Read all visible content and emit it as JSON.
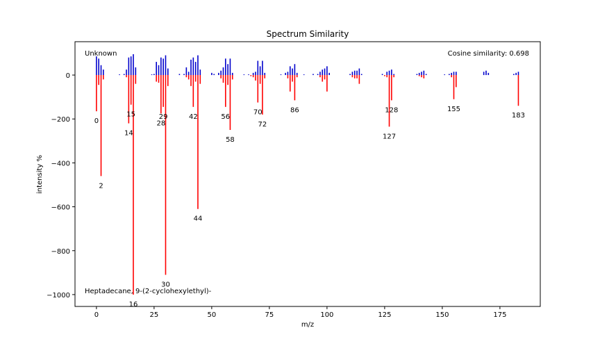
{
  "chart_data": {
    "type": "bar",
    "title": "Spectrum Similarity",
    "x_label": "m/z",
    "y_label": "intensity %",
    "annotations": [
      "Unknown",
      "Cosine similarity: 0.698",
      "Heptadecane, 9-(2-cyclohexylethyl)-"
    ],
    "xlim": [
      -9.3,
      192.5
    ],
    "ylim": [
      -1054,
      152
    ],
    "xticks": [
      0,
      25,
      50,
      75,
      100,
      125,
      150,
      175
    ],
    "yticks": [
      {
        "value": -1000,
        "label": "−1000"
      },
      {
        "value": -800,
        "label": "−800"
      },
      {
        "value": -600,
        "label": "−600"
      },
      {
        "value": -400,
        "label": "−400"
      },
      {
        "value": -200,
        "label": "−200"
      },
      0
    ],
    "series": [
      {
        "name": "Unknown",
        "color": "#0000cc",
        "x": [
          0,
          1,
          2,
          3,
          10,
          12,
          13,
          14,
          15,
          16,
          17,
          24,
          25,
          26,
          27,
          28,
          29,
          30,
          31,
          36,
          38,
          39,
          40,
          41,
          42,
          43,
          44,
          45,
          50,
          51,
          53,
          54,
          55,
          56,
          57,
          58,
          59,
          64,
          66,
          68,
          69,
          70,
          71,
          72,
          73,
          80,
          82,
          83,
          84,
          85,
          86,
          87,
          90,
          94,
          96,
          97,
          98,
          99,
          100,
          101,
          110,
          111,
          112,
          113,
          114,
          115,
          124,
          126,
          127,
          128,
          129,
          139,
          140,
          141,
          142,
          143,
          151,
          153,
          154,
          155,
          156,
          168,
          169,
          170,
          181,
          182,
          183
        ],
        "values": [
          85,
          75,
          45,
          25,
          3,
          5,
          25,
          80,
          85,
          95,
          35,
          3,
          5,
          60,
          45,
          80,
          75,
          90,
          30,
          5,
          5,
          35,
          15,
          70,
          80,
          60,
          90,
          25,
          10,
          5,
          10,
          20,
          35,
          75,
          50,
          75,
          10,
          3,
          3,
          10,
          15,
          65,
          40,
          65,
          10,
          3,
          10,
          15,
          40,
          30,
          50,
          10,
          3,
          5,
          5,
          15,
          25,
          30,
          40,
          10,
          5,
          15,
          20,
          20,
          30,
          5,
          5,
          15,
          20,
          25,
          5,
          5,
          10,
          15,
          20,
          5,
          3,
          5,
          10,
          15,
          15,
          15,
          20,
          10,
          5,
          10,
          15
        ]
      },
      {
        "name": "Heptadecane, 9-(2-cyclohexylethyl)-",
        "color": "#ff0000",
        "x": [
          0,
          1,
          2,
          3,
          13,
          14,
          15,
          16,
          17,
          26,
          27,
          28,
          29,
          30,
          31,
          39,
          40,
          41,
          42,
          43,
          44,
          45,
          54,
          55,
          56,
          57,
          58,
          59,
          67,
          68,
          69,
          70,
          71,
          72,
          73,
          83,
          84,
          85,
          86,
          87,
          97,
          98,
          99,
          100,
          111,
          112,
          113,
          114,
          125,
          126,
          127,
          128,
          129,
          140,
          141,
          142,
          154,
          155,
          156,
          183
        ],
        "values": [
          -165,
          -45,
          -460,
          -20,
          -10,
          -220,
          -135,
          -1000,
          -40,
          -30,
          -35,
          -175,
          -145,
          -910,
          -50,
          -10,
          -20,
          -50,
          -145,
          -30,
          -610,
          -40,
          -15,
          -35,
          -145,
          -45,
          -250,
          -20,
          -5,
          -10,
          -25,
          -125,
          -40,
          -180,
          -15,
          -15,
          -75,
          -30,
          -115,
          -10,
          -10,
          -30,
          -20,
          -75,
          -10,
          -15,
          -15,
          -40,
          -5,
          -10,
          -235,
          -115,
          -10,
          -5,
          -10,
          -15,
          -10,
          -110,
          -55,
          -140
        ]
      }
    ],
    "peak_labels": [
      0,
      2,
      14,
      15,
      16,
      28,
      29,
      30,
      42,
      44,
      56,
      58,
      70,
      72,
      86,
      127,
      128,
      155,
      183
    ]
  }
}
